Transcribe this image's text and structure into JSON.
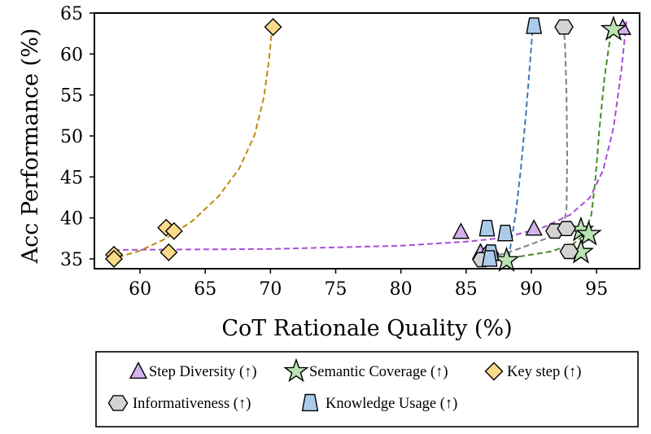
{
  "chart_data": {
    "type": "scatter",
    "title": "",
    "xlabel": "CoT Rationale Quality (%)",
    "ylabel": "Acc Performance (%)",
    "xlim": [
      56.5,
      98.3
    ],
    "ylim": [
      33.8,
      65
    ],
    "xticks": [
      60,
      65,
      70,
      75,
      80,
      85,
      90,
      95
    ],
    "yticks": [
      35,
      40,
      45,
      50,
      55,
      60,
      65
    ],
    "legend_position": "below",
    "series": [
      {
        "name": "Step Diversity (↑)",
        "marker": "triangle",
        "color": "#d4b2ec",
        "line_color": "#a64fd6",
        "points": [
          [
            97.0,
            63.2
          ],
          [
            84.6,
            38.3
          ],
          [
            90.2,
            38.7
          ],
          [
            86.1,
            35.8
          ],
          [
            86.5,
            35.2
          ]
        ],
        "curve": [
          [
            58.0,
            36.1
          ],
          [
            70.0,
            36.2
          ],
          [
            80.0,
            36.6
          ],
          [
            85.0,
            37.1
          ],
          [
            88.0,
            37.6
          ],
          [
            91.0,
            38.9
          ],
          [
            93.0,
            40.4
          ],
          [
            94.5,
            42.5
          ],
          [
            95.5,
            45.8
          ],
          [
            96.3,
            51.0
          ],
          [
            96.9,
            58.0
          ],
          [
            97.3,
            64.2
          ]
        ]
      },
      {
        "name": "Semantic Coverage (↑)",
        "marker": "star",
        "color": "#b9e3b2",
        "line_color": "#4a8a2a",
        "points": [
          [
            96.3,
            63.0
          ],
          [
            93.8,
            38.5
          ],
          [
            94.4,
            38.0
          ],
          [
            88.1,
            34.8
          ],
          [
            93.8,
            35.8
          ]
        ],
        "curve": [
          [
            88.4,
            35.1
          ],
          [
            91.5,
            35.9
          ],
          [
            93.2,
            36.8
          ],
          [
            94.1,
            38.0
          ],
          [
            94.6,
            40.4
          ],
          [
            94.9,
            44.5
          ],
          [
            95.2,
            50.5
          ],
          [
            95.6,
            57.0
          ],
          [
            96.1,
            62.6
          ]
        ]
      },
      {
        "name": "Key step (↑)",
        "marker": "diamond",
        "color": "#fbd98a",
        "line_color": "#c08a10",
        "points": [
          [
            70.2,
            63.3
          ],
          [
            62.0,
            38.8
          ],
          [
            62.6,
            38.4
          ],
          [
            62.2,
            35.8
          ],
          [
            58.0,
            35.5
          ],
          [
            58.0,
            35.0
          ]
        ],
        "curve": [
          [
            58.3,
            35.2
          ],
          [
            60.0,
            36.0
          ],
          [
            62.0,
            37.5
          ],
          [
            64.0,
            39.6
          ],
          [
            66.0,
            42.6
          ],
          [
            67.6,
            46.0
          ],
          [
            68.8,
            50.2
          ],
          [
            69.5,
            54.8
          ],
          [
            69.9,
            59.5
          ],
          [
            70.1,
            62.8
          ]
        ]
      },
      {
        "name": "Informativeness (↑)",
        "marker": "hexagon",
        "color": "#d3d3d3",
        "line_color": "#808080",
        "points": [
          [
            92.5,
            63.3
          ],
          [
            91.8,
            38.4
          ],
          [
            92.7,
            38.7
          ],
          [
            86.8,
            35.6
          ],
          [
            86.2,
            34.9
          ],
          [
            92.9,
            35.9
          ]
        ],
        "curve": [
          [
            86.8,
            35.1
          ],
          [
            89.0,
            36.2
          ],
          [
            91.0,
            37.4
          ],
          [
            92.4,
            38.6
          ],
          [
            92.7,
            41.0
          ],
          [
            92.75,
            47.5
          ],
          [
            92.7,
            55.0
          ],
          [
            92.6,
            60.5
          ],
          [
            92.5,
            63.0
          ]
        ]
      },
      {
        "name": "Knowledge Usage (↑)",
        "marker": "trapezoid",
        "color": "#abcbea",
        "line_color": "#3a78b8",
        "points": [
          [
            90.2,
            63.4
          ],
          [
            86.6,
            38.7
          ],
          [
            88.0,
            38.1
          ],
          [
            86.9,
            35.7
          ],
          [
            86.8,
            35.0
          ]
        ],
        "curve": [
          [
            88.2,
            34.0
          ],
          [
            88.4,
            36.5
          ],
          [
            88.8,
            40.5
          ],
          [
            89.2,
            46.0
          ],
          [
            89.6,
            53.0
          ],
          [
            89.9,
            59.0
          ],
          [
            90.1,
            63.2
          ]
        ]
      }
    ]
  },
  "icons": {
    "triangle": "triangle-marker-icon",
    "star": "star-marker-icon",
    "diamond": "diamond-marker-icon",
    "hexagon": "hexagon-marker-icon",
    "trapezoid": "trapezoid-marker-icon"
  }
}
